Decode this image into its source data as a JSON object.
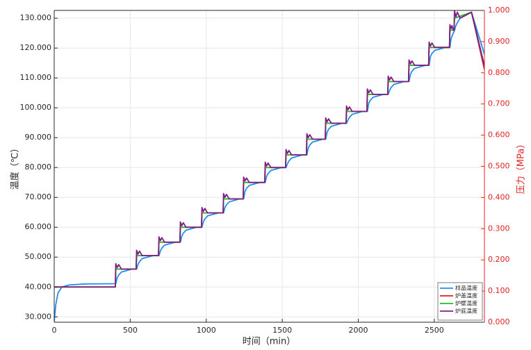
{
  "chart_data": {
    "type": "line",
    "xlabel": "时间（min）",
    "ylabel": "温度（℃）",
    "y2label": "压力（MPa）",
    "xlim": [
      0,
      2830
    ],
    "xticks": [
      0,
      500,
      1000,
      1500,
      2000,
      2500
    ],
    "ylim": [
      28.2,
      132.6
    ],
    "yticks": [
      {
        "value": 30,
        "label": "30.000"
      },
      {
        "value": 40,
        "label": "40.000"
      },
      {
        "value": 50,
        "label": "50.000"
      },
      {
        "value": 60,
        "label": "60.000"
      },
      {
        "value": 70,
        "label": "70.000"
      },
      {
        "value": 80,
        "label": "80.000"
      },
      {
        "value": 90,
        "label": "90.000"
      },
      {
        "value": 100,
        "label": "100.000"
      },
      {
        "value": 110,
        "label": "110.000"
      },
      {
        "value": 120,
        "label": "120.000"
      },
      {
        "value": 130,
        "label": "130.000"
      }
    ],
    "y2lim": [
      0,
      1
    ],
    "y2ticks": [
      {
        "value": 0,
        "label": "0.000"
      },
      {
        "value": 0.1,
        "label": "0.100"
      },
      {
        "value": 0.2,
        "label": "0.200"
      },
      {
        "value": 0.3,
        "label": "0.300"
      },
      {
        "value": 0.4,
        "label": "0.400"
      },
      {
        "value": 0.5,
        "label": "0.500"
      },
      {
        "value": 0.6,
        "label": "0.600"
      },
      {
        "value": 0.7,
        "label": "0.700"
      },
      {
        "value": 0.8,
        "label": "0.800"
      },
      {
        "value": 0.9,
        "label": "0.900"
      },
      {
        "value": 1,
        "label": "1.000"
      }
    ],
    "y2color": "#e02020",
    "grid": true,
    "legend": "lower right",
    "x": [
      0,
      10,
      25,
      50,
      100,
      200,
      402,
      405,
      414,
      424,
      442,
      512,
      539,
      542,
      551,
      561,
      579,
      649,
      686,
      689,
      698,
      708,
      726,
      796,
      827,
      830,
      839,
      849,
      867,
      937,
      969,
      972,
      981,
      991,
      1009,
      1079,
      1111,
      1114,
      1123,
      1133,
      1151,
      1221,
      1243,
      1246,
      1255,
      1265,
      1283,
      1353,
      1385,
      1388,
      1397,
      1407,
      1425,
      1495,
      1522,
      1525,
      1534,
      1544,
      1562,
      1632,
      1659,
      1662,
      1671,
      1681,
      1699,
      1769,
      1783,
      1786,
      1795,
      1805,
      1823,
      1893,
      1920,
      1923,
      1932,
      1942,
      1960,
      2030,
      2057,
      2060,
      2069,
      2079,
      2097,
      2167,
      2194,
      2197,
      2206,
      2216,
      2234,
      2304,
      2331,
      2334,
      2343,
      2353,
      2371,
      2441,
      2463,
      2466,
      2475,
      2485,
      2503,
      2573,
      2600,
      2603,
      2610,
      2617,
      2625,
      2630,
      2633,
      2642,
      2652,
      2670,
      2745,
      2830
    ],
    "series": [
      {
        "name": "样品温度",
        "color": "#1f8ef0",
        "values": [
          28.5,
          34,
          38,
          40,
          40.7,
          41,
          41.1,
          41.1,
          43,
          44,
          45,
          46,
          46,
          46,
          47.5,
          48.5,
          49.5,
          50.5,
          50.5,
          50.5,
          52,
          53,
          54,
          55,
          55,
          55,
          57,
          58,
          59,
          60,
          60,
          60,
          61.8,
          62.8,
          63.8,
          64.8,
          64.8,
          64.8,
          66.5,
          67.5,
          68.5,
          69.5,
          69.5,
          69.5,
          72,
          73,
          74,
          75,
          75,
          75,
          77,
          78,
          79,
          80,
          80,
          80,
          81.2,
          82.2,
          83.2,
          84.2,
          84.2,
          84.2,
          86.5,
          87.5,
          88.5,
          89.5,
          89.5,
          89.5,
          91.8,
          92.8,
          93.8,
          94.8,
          94.8,
          94.8,
          95.8,
          96.8,
          97.8,
          98.8,
          98.8,
          98.8,
          101.5,
          102.5,
          103.5,
          104.5,
          104.5,
          104.5,
          105.8,
          106.8,
          107.8,
          108.8,
          108.8,
          108.8,
          111.2,
          112.2,
          113.2,
          114.2,
          114.2,
          114.2,
          117.2,
          118.2,
          119.2,
          120.2,
          120.2,
          120.2,
          123,
          124,
          125,
          125.5,
          125.8,
          127.5,
          128.5,
          130,
          132,
          117.9
        ]
      },
      {
        "name": "炉盖温度",
        "color": "#d62020",
        "x": [
          0,
          402,
          405,
          539,
          542,
          686,
          689,
          827,
          830,
          969,
          972,
          1111,
          1114,
          1243,
          1246,
          1385,
          1388,
          1522,
          1525,
          1659,
          1662,
          1783,
          1786,
          1920,
          1923,
          2057,
          2060,
          2194,
          2197,
          2331,
          2334,
          2463,
          2466,
          2600,
          2603,
          2630,
          2633,
          2745,
          2830
        ],
        "values": [
          40,
          40,
          46,
          46,
          50.5,
          50.5,
          55,
          55,
          60,
          60,
          64.8,
          64.8,
          69.5,
          69.5,
          75,
          75,
          80,
          80,
          84.2,
          84.2,
          89.5,
          89.5,
          94.8,
          94.8,
          98.8,
          98.8,
          104.5,
          104.5,
          108.8,
          108.8,
          114.2,
          114.2,
          120.2,
          120.2,
          126,
          126,
          130,
          132,
          112.8
        ]
      },
      {
        "name": "炉壁温度",
        "color": "#20c020",
        "x": [
          0,
          402,
          405,
          539,
          542,
          686,
          689,
          827,
          830,
          969,
          972,
          1111,
          1114,
          1243,
          1246,
          1385,
          1388,
          1522,
          1525,
          1659,
          1662,
          1783,
          1786,
          1920,
          1923,
          2057,
          2060,
          2194,
          2197,
          2331,
          2334,
          2463,
          2466,
          2600,
          2603,
          2630,
          2633,
          2745,
          2830
        ],
        "values": [
          40,
          40,
          46,
          46,
          50.5,
          50.5,
          55,
          55,
          60,
          60,
          64.8,
          64.8,
          69.5,
          69.5,
          75,
          75,
          80,
          80,
          84.2,
          84.2,
          89.5,
          89.5,
          94.8,
          94.8,
          98.8,
          98.8,
          104.5,
          104.5,
          108.8,
          108.8,
          114.2,
          114.2,
          120.2,
          120.2,
          126,
          126,
          130,
          132,
          114
        ]
      },
      {
        "name": "炉底温度",
        "color": "#7e1e80",
        "values": [
          40,
          40,
          40,
          40,
          40,
          40,
          40,
          47.8,
          46.5,
          47.5,
          46,
          46,
          46,
          52.3,
          51,
          52,
          50.5,
          50.5,
          50.5,
          56.8,
          55.5,
          56.5,
          55,
          55,
          55,
          61.8,
          60.5,
          61.5,
          60,
          60,
          60,
          66.6,
          65.3,
          66.3,
          64.8,
          64.8,
          64.8,
          71.3,
          70,
          71,
          69.5,
          69.5,
          69.5,
          76.8,
          75.5,
          76.5,
          75,
          75,
          75,
          81.8,
          80.5,
          81.5,
          80,
          80,
          80,
          86,
          84.7,
          85.7,
          84.2,
          84.2,
          84.2,
          91.3,
          90,
          91,
          89.5,
          89.5,
          89.5,
          96.6,
          95.3,
          96.3,
          94.8,
          94.8,
          94.8,
          100.6,
          99.3,
          100.3,
          98.8,
          98.8,
          98.8,
          106.3,
          105,
          106,
          104.5,
          104.5,
          104.5,
          110.6,
          109.3,
          110.3,
          108.8,
          108.8,
          108.8,
          116,
          114.7,
          115.7,
          114.2,
          114.2,
          114.2,
          122,
          120.7,
          121.7,
          120.2,
          120.2,
          120.2,
          127.8,
          126.5,
          127.5,
          126,
          126,
          132.5,
          130.5,
          132,
          130,
          132,
          114
        ]
      }
    ]
  }
}
